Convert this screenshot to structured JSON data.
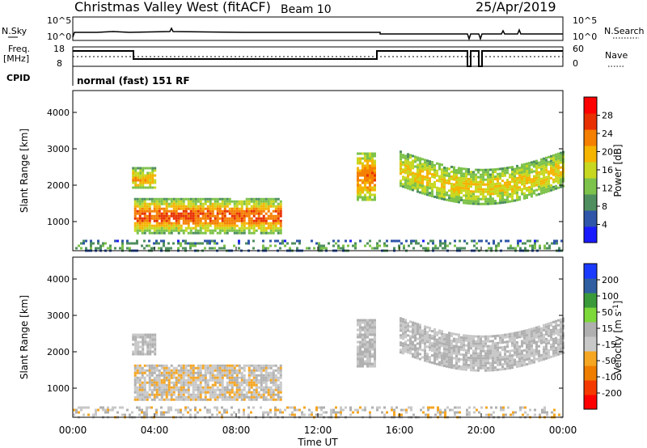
{
  "header": {
    "title": "Christmas Valley West (fitACF)",
    "beam": "Beam 10",
    "date": "25/Apr/2019"
  },
  "summary": {
    "nsky_label": "N.Sky",
    "nsky_ticks": [
      "10^5",
      "10^0"
    ],
    "nsearch_label": "N.Search",
    "nsearch_ticks": [
      "10^5",
      "10^0"
    ],
    "freq_label_1": "Freq.",
    "freq_label_2": "[MHz]",
    "freq_ticks": [
      "18",
      "8"
    ],
    "nave_label": "Nave",
    "nave_ticks": [
      "60",
      "0"
    ],
    "cpid_label": "CPID",
    "cpid_text": "normal (fast) 151 RF"
  },
  "colors": {
    "power": [
      "#1a1aff",
      "#2f56a8",
      "#4f8f5f",
      "#7dc24a",
      "#c8d820",
      "#f5b400",
      "#f57f00",
      "#e83000",
      "#ff0000"
    ],
    "velocity": [
      "#ff0000",
      "#f53a00",
      "#ef7d00",
      "#f5a623",
      "#c8c8c8",
      "#b0b0b0",
      "#7dd83a",
      "#3a9a3a",
      "#2f5fa0",
      "#1a3aff"
    ]
  },
  "chart_data": [
    {
      "type": "heatmap",
      "name": "power",
      "ylabel": "Slant Range [km]",
      "yticks": [
        "4000",
        "3000",
        "2000",
        "1000"
      ],
      "ylim": [
        200,
        4600
      ],
      "xlim_hours": [
        0,
        24
      ],
      "colorbar_label": "Power [dB]",
      "colorbar_ticks": [
        "28",
        "24",
        "20",
        "16",
        "12",
        "8",
        "4"
      ],
      "clim": [
        0,
        32
      ],
      "regions": [
        {
          "t0": 3.0,
          "t1": 10.2,
          "r0": 700,
          "r1": 1650,
          "core": 26,
          "edge": 10
        },
        {
          "t0": 2.9,
          "t1": 4.0,
          "r0": 1900,
          "r1": 2500,
          "core": 20,
          "edge": 10
        },
        {
          "t0": 13.9,
          "t1": 14.8,
          "r0": 1600,
          "r1": 2900,
          "core": 24,
          "edge": 12
        },
        {
          "t0": 16.0,
          "t1": 24.0,
          "r0": 1500,
          "r1": 2950,
          "core": 18,
          "edge": 10
        },
        {
          "t0": 0.0,
          "t1": 24.0,
          "r0": 200,
          "r1": 500,
          "core": 10,
          "edge": 4
        }
      ]
    },
    {
      "type": "heatmap",
      "name": "velocity",
      "ylabel": "Slant Range [km]",
      "yticks": [
        "4000",
        "3000",
        "2000",
        "1000"
      ],
      "ylim": [
        200,
        4600
      ],
      "xlim_hours": [
        0,
        24
      ],
      "xticks": [
        "00:00",
        "04:00",
        "08:00",
        "12:00",
        "16:00",
        "20:00",
        "00:00"
      ],
      "xlabel": "Time UT",
      "colorbar_label": "Velocity [m s^-1]",
      "colorbar_ticks": [
        "200",
        "100",
        "50",
        "15",
        "-15",
        "-50",
        "-100",
        "-200"
      ],
      "clim": [
        -250,
        250
      ],
      "regions": [
        {
          "t0": 3.0,
          "t1": 10.2,
          "r0": 700,
          "r1": 1650,
          "v": -40
        },
        {
          "t0": 2.9,
          "t1": 4.0,
          "r0": 1900,
          "r1": 2500,
          "v": 0
        },
        {
          "t0": 13.9,
          "t1": 14.8,
          "r0": 1600,
          "r1": 2900,
          "v": 0
        },
        {
          "t0": 16.0,
          "t1": 24.0,
          "r0": 1500,
          "r1": 2950,
          "v": 0
        },
        {
          "t0": 0.0,
          "t1": 24.0,
          "r0": 200,
          "r1": 500,
          "v": 30
        }
      ]
    }
  ]
}
